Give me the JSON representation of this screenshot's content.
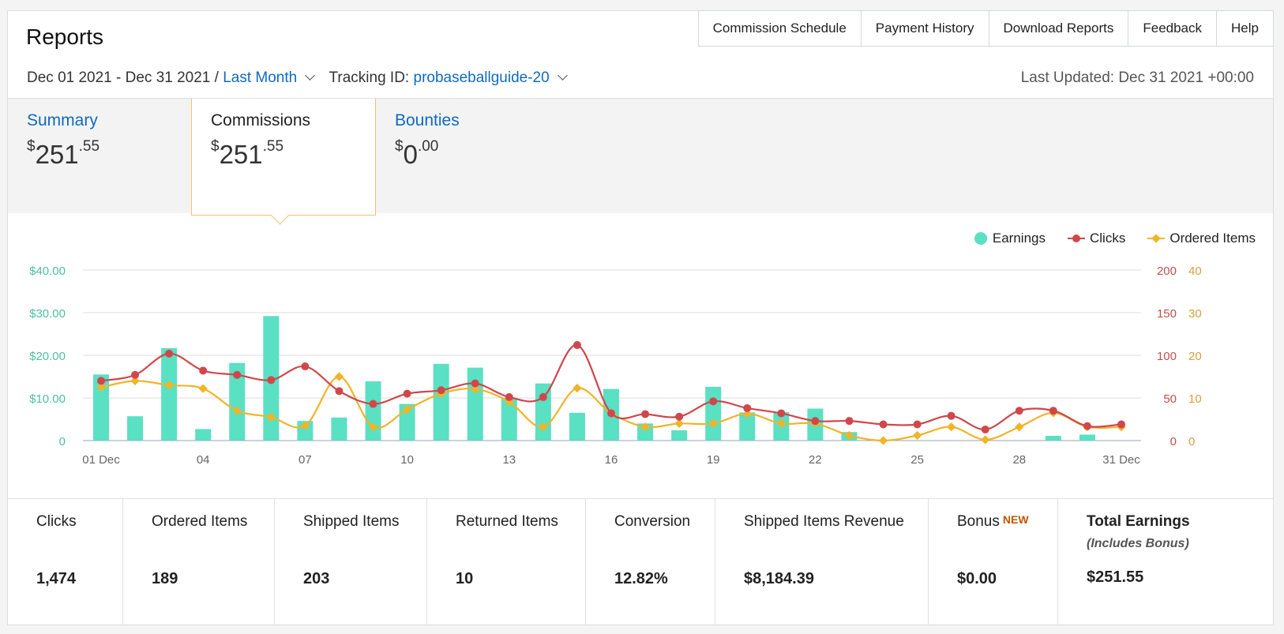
{
  "header": {
    "title": "Reports"
  },
  "topnav": [
    "Commission Schedule",
    "Payment History",
    "Download Reports",
    "Feedback",
    "Help"
  ],
  "filters": {
    "date_range": "Dec 01 2021 - Dec 31 2021 /",
    "period": "Last Month",
    "tracking_label": "Tracking ID:",
    "tracking_id": "probaseballguide-20",
    "last_updated": "Last Updated: Dec 31 2021 +00:00"
  },
  "tabs": [
    {
      "label": "Summary",
      "currency": "$",
      "whole": "251",
      "cents": ".55",
      "active": false
    },
    {
      "label": "Commissions",
      "currency": "$",
      "whole": "251",
      "cents": ".55",
      "active": true
    },
    {
      "label": "Bounties",
      "currency": "$",
      "whole": "0",
      "cents": ".00",
      "active": false
    }
  ],
  "legend": {
    "earnings": "Earnings",
    "clicks": "Clicks",
    "ordered": "Ordered Items"
  },
  "colors": {
    "earnings": "#5ae0c3",
    "clicks": "#d0474b",
    "ordered": "#f0b429",
    "link": "#0f6bbf"
  },
  "chart_data": {
    "type": "bar",
    "x_ticks": [
      "01 Dec",
      "04",
      "07",
      "10",
      "13",
      "16",
      "19",
      "22",
      "25",
      "28",
      "31 Dec"
    ],
    "left_axis_ticks": [
      "0",
      "$10.00",
      "$20.00",
      "$30.00",
      "$40.00"
    ],
    "right_axis_clicks_ticks": [
      "0",
      "50",
      "100",
      "150",
      "200"
    ],
    "right_axis_items_ticks": [
      "0",
      "10",
      "20",
      "30",
      "40"
    ],
    "ylim_earnings": [
      0,
      40
    ],
    "ylim_clicks": [
      0,
      200
    ],
    "ylim_items": [
      0,
      40
    ],
    "series": [
      {
        "name": "Earnings",
        "kind": "bar",
        "values": [
          15.5,
          5.7,
          21.7,
          2.7,
          18.2,
          29.2,
          4.6,
          5.4,
          13.9,
          8.6,
          18.0,
          17.1,
          10.0,
          13.4,
          6.5,
          12.1,
          4.0,
          2.4,
          12.6,
          6.6,
          6.7,
          7.5,
          2.0,
          0,
          0,
          0,
          0,
          0,
          1.1,
          1.4,
          0
        ]
      },
      {
        "name": "Clicks",
        "kind": "line",
        "values": [
          70,
          77,
          102,
          82,
          77,
          71,
          87,
          58,
          43,
          55,
          59,
          67,
          51,
          51,
          112,
          32,
          31,
          28,
          46,
          38,
          32,
          23,
          23,
          19,
          19,
          29,
          13,
          35,
          35,
          17,
          19
        ]
      },
      {
        "name": "Ordered Items",
        "kind": "line",
        "values": [
          12.5,
          14.0,
          13.0,
          12.2,
          7.0,
          5.5,
          3.5,
          15.0,
          3.2,
          7.3,
          11.0,
          12.1,
          9.1,
          3.2,
          12.3,
          6.4,
          3.2,
          4.0,
          4.0,
          6.3,
          4.0,
          4.0,
          1.2,
          0,
          1.2,
          3.2,
          0.2,
          3.2,
          6.5,
          3.2,
          3.2
        ]
      }
    ]
  },
  "stats": [
    {
      "label": "Clicks",
      "value": "1,474"
    },
    {
      "label": "Ordered Items",
      "value": "189"
    },
    {
      "label": "Shipped Items",
      "value": "203"
    },
    {
      "label": "Returned Items",
      "value": "10"
    },
    {
      "label": "Conversion",
      "value": "12.82%"
    },
    {
      "label": "Shipped Items Revenue",
      "value": "$8,184.39"
    },
    {
      "label": "Bonus",
      "badge": "NEW",
      "value": "$0.00"
    },
    {
      "label": "Total Earnings",
      "sublabel": "(Includes Bonus)",
      "value": "$251.55"
    }
  ]
}
